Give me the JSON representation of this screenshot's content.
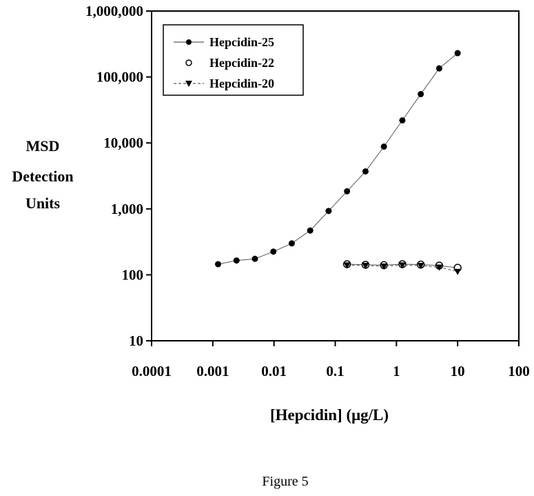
{
  "figure": {
    "caption": "Figure 5"
  },
  "chart_data": {
    "type": "line",
    "title": "",
    "xlabel": "[Hepcidin] (μg/L)",
    "ylabel_lines": [
      "MSD",
      "Detection",
      "Units"
    ],
    "xscale": "log",
    "yscale": "log",
    "xlim": [
      0.0001,
      100
    ],
    "ylim": [
      10,
      1000000
    ],
    "xticks": [
      0.0001,
      0.001,
      0.01,
      0.1,
      1,
      10,
      100
    ],
    "xtick_labels": [
      "0.0001",
      "0.001",
      "0.01",
      "0.1",
      "1",
      "10",
      "100"
    ],
    "yticks": [
      10,
      100,
      1000,
      10000,
      100000,
      1000000
    ],
    "ytick_labels": [
      "10",
      "100",
      "1,000",
      "10,000",
      "100,000",
      "1,000,000"
    ],
    "legend_position": "top-left",
    "series": [
      {
        "name": "Hepcidin-25",
        "marker": "filled-circle",
        "x": [
          0.00122,
          0.00244,
          0.00488,
          0.00977,
          0.0195,
          0.039,
          0.078,
          0.156,
          0.3125,
          0.625,
          1.25,
          2.5,
          5,
          10
        ],
        "y": [
          145,
          165,
          175,
          225,
          300,
          470,
          930,
          1850,
          3700,
          8800,
          22000,
          55000,
          135000,
          230000
        ]
      },
      {
        "name": "Hepcidin-22",
        "marker": "open-circle",
        "x": [
          0.156,
          0.3125,
          0.625,
          1.25,
          2.5,
          5,
          10
        ],
        "y": [
          145,
          142,
          140,
          145,
          143,
          138,
          128
        ]
      },
      {
        "name": "Hepcidin-20",
        "marker": "triangle-down",
        "x": [
          0.156,
          0.3125,
          0.625,
          1.25,
          2.5,
          5,
          10
        ],
        "y": [
          140,
          138,
          135,
          140,
          138,
          130,
          112
        ]
      }
    ]
  }
}
